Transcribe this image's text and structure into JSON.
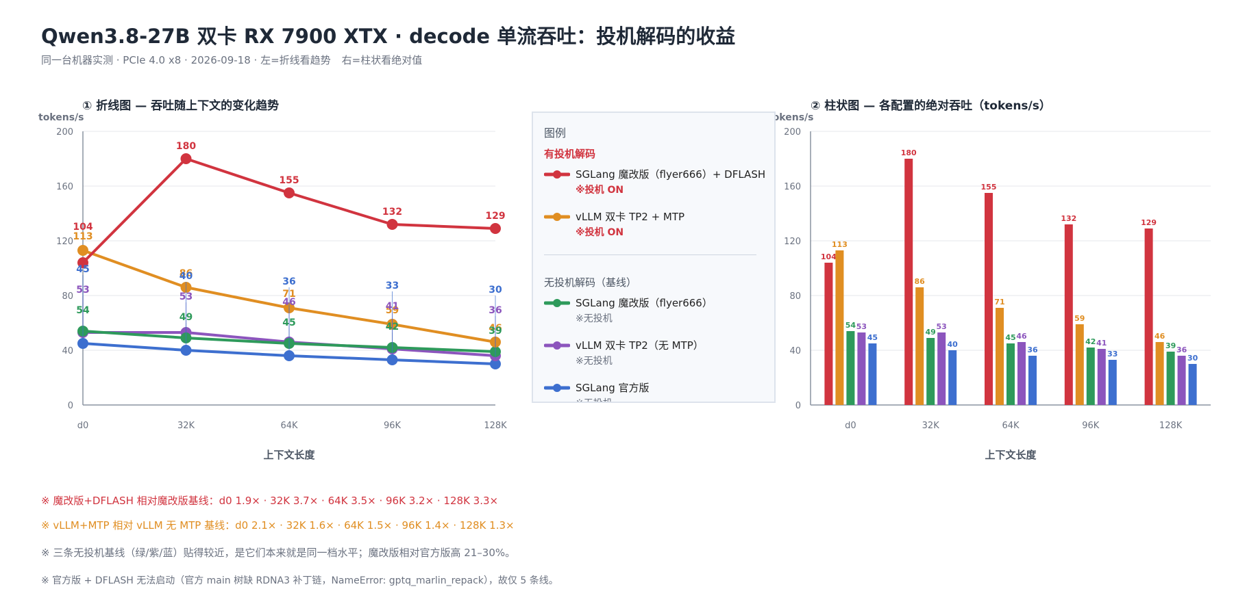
{
  "header": {
    "title": "Qwen3.8-27B 双卡 RX 7900 XTX · decode 单流吞吐：投机解码的收益",
    "subtitle_left": "同一台机器实测 · PCIe 4.0 x8 · 2026-09-18 · 左=折线看趋势",
    "subtitle_right": "右=柱状看绝对值"
  },
  "legend": {
    "title": "图例",
    "group_spec": "有投机解码",
    "group_base": "无投机解码（基线）",
    "items": [
      {
        "name": "SGLang 魔改版（flyer666）+ DFLASH",
        "tag": "※投机 ON",
        "color": "#d1343f"
      },
      {
        "name": "vLLM 双卡 TP2 + MTP",
        "tag": "※投机 ON",
        "color": "#e08e22"
      },
      {
        "name": "SGLang 魔改版（flyer666）",
        "tag": "※无投机",
        "color": "#2e9a5b"
      },
      {
        "name": "vLLM 双卡 TP2（无 MTP）",
        "tag": "※无投机",
        "color": "#8c55bd"
      },
      {
        "name": "SGLang 官方版",
        "tag": "※无投机",
        "color": "#3d6fcf"
      }
    ]
  },
  "notes": [
    "※ 魔改版+DFLASH 相对魔改版基线：d0 1.9× · 32K 3.7× · 64K 3.5× · 96K 3.2× · 128K 3.3×",
    "※ vLLM+MTP 相对 vLLM 无 MTP 基线：d0 2.1× · 32K 1.6× · 64K 1.5× · 96K 1.4× · 128K 1.3×",
    "※ 三条无投机基线（绿/紫/蓝）贴得较近，是它们本来就是同一档水平；魔改版相对官方版高 21–30%。",
    "※ 官方版 + DFLASH 无法启动（官方 main 树缺 RDNA3 补丁链，NameError: gptq_marlin_repack），故仅 5 条线。"
  ],
  "chart_data": [
    {
      "type": "line",
      "title": "① 折线图 — 吞吐随上下文的变化趋势",
      "xlabel": "上下文长度",
      "ylabel": "tokens/s",
      "categories": [
        "d0",
        "32K",
        "64K",
        "96K",
        "128K"
      ],
      "ylim": [
        0,
        200
      ],
      "yticks": [
        0,
        40,
        80,
        120,
        160,
        200
      ],
      "grid": true,
      "series": [
        {
          "name": "SGLang 魔改版（flyer666）+ DFLASH",
          "color": "#d1343f",
          "values": [
            104,
            180,
            155,
            132,
            129
          ]
        },
        {
          "name": "vLLM 双卡 TP2 + MTP",
          "color": "#e08e22",
          "values": [
            113,
            86,
            71,
            59,
            46
          ]
        },
        {
          "name": "SGLang 魔改版（flyer666）",
          "color": "#2e9a5b",
          "values": [
            54,
            49,
            45,
            42,
            39
          ]
        },
        {
          "name": "vLLM 双卡 TP2（无 MTP）",
          "color": "#8c55bd",
          "values": [
            53,
            53,
            46,
            41,
            36
          ]
        },
        {
          "name": "SGLang 官方版",
          "color": "#3d6fcf",
          "values": [
            45,
            40,
            36,
            33,
            30
          ]
        }
      ]
    },
    {
      "type": "bar",
      "title": "② 柱状图 — 各配置的绝对吞吐（tokens/s）",
      "xlabel": "上下文长度",
      "ylabel": "tokens/s",
      "categories": [
        "d0",
        "32K",
        "64K",
        "96K",
        "128K"
      ],
      "ylim": [
        0,
        200
      ],
      "yticks": [
        0,
        40,
        80,
        120,
        160,
        200
      ],
      "grid": true,
      "series": [
        {
          "name": "SGLang 魔改版（flyer666）+ DFLASH",
          "color": "#d1343f",
          "values": [
            104,
            180,
            155,
            132,
            129
          ]
        },
        {
          "name": "vLLM 双卡 TP2 + MTP",
          "color": "#e08e22",
          "values": [
            113,
            86,
            71,
            59,
            46
          ]
        },
        {
          "name": "SGLang 魔改版（flyer666）",
          "color": "#2e9a5b",
          "values": [
            54,
            49,
            45,
            42,
            39
          ]
        },
        {
          "name": "vLLM 双卡 TP2（无 MTP）",
          "color": "#8c55bd",
          "values": [
            53,
            53,
            46,
            41,
            36
          ]
        },
        {
          "name": "SGLang 官方版",
          "color": "#3d6fcf",
          "values": [
            45,
            40,
            36,
            33,
            30
          ]
        }
      ]
    }
  ]
}
